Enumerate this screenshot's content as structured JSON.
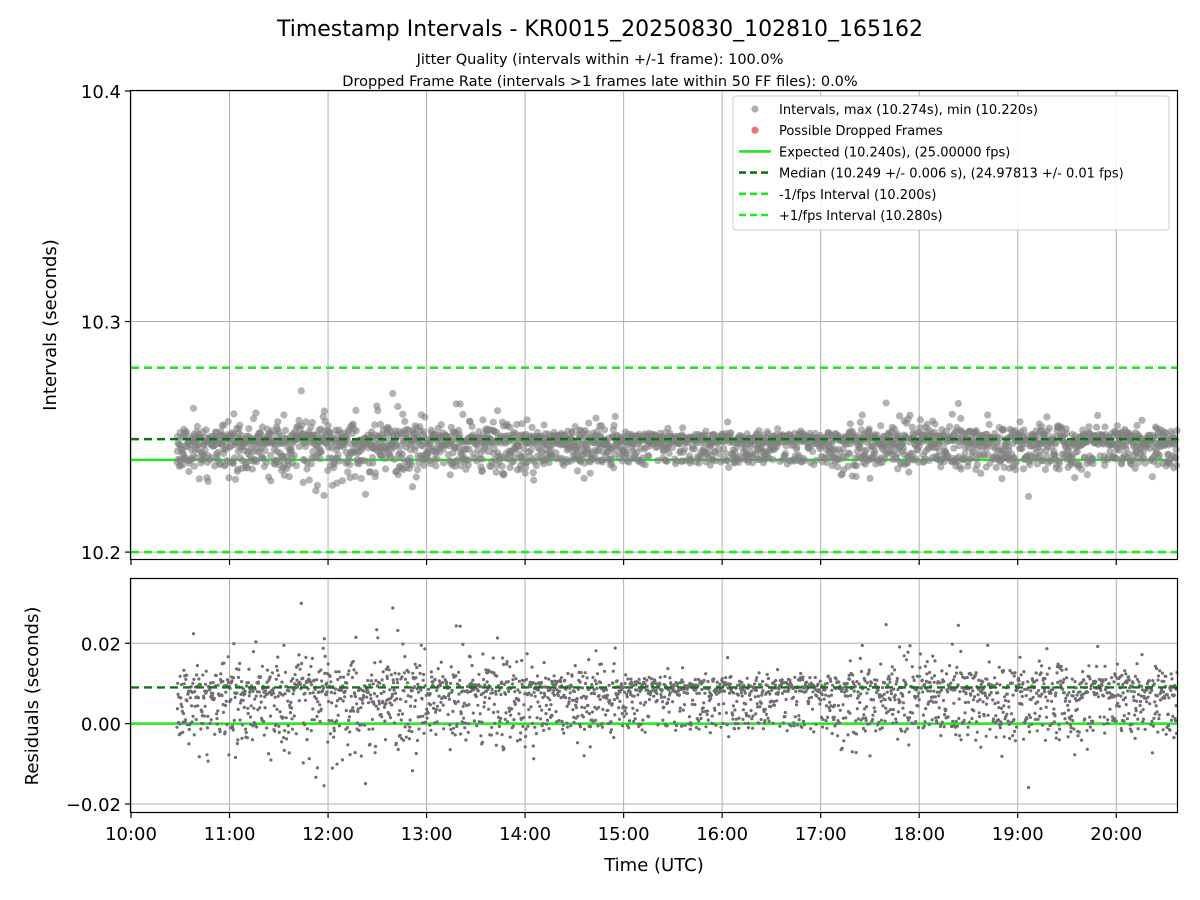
{
  "title": "Timestamp Intervals - KR0015_20250830_102810_165162",
  "subtitle_lines": [
    "Jitter Quality (intervals within +/-1 frame): 100.0%",
    "Dropped Frame Rate (intervals >1 frames late within 50 FF files): 0.0%"
  ],
  "colors": {
    "points": "#808080",
    "dropped": "#f05a5a",
    "expected": "#22e622",
    "median": "#0a7a0a",
    "interval_lines": "#22e622",
    "grid": "#b0b0b0"
  },
  "chart_data": [
    {
      "type": "scatter",
      "ylabel": "Intervals (seconds)",
      "xlim": [
        "10:00",
        "20:37"
      ],
      "ylim": [
        10.197,
        10.4
      ],
      "yticks": [
        "10.2",
        "10.3",
        "10.4"
      ],
      "grid": true,
      "legend_position": "upper right",
      "legend": [
        {
          "label": "Intervals, max (10.274s), min (10.220s)",
          "kind": "marker",
          "color": "#a0a0a0"
        },
        {
          "label": "Possible Dropped Frames",
          "kind": "marker",
          "color": "#f05a5a"
        },
        {
          "label": "Expected (10.240s), (25.00000 fps)",
          "kind": "solid",
          "color": "#22e622"
        },
        {
          "label": "Median (10.249 +/- 0.006 s), (24.97813 +/- 0.01 fps)",
          "kind": "dashed",
          "color": "#0a7a0a"
        },
        {
          "label": "-1/fps Interval (10.200s)",
          "kind": "dashed",
          "color": "#22e622"
        },
        {
          "label": "+1/fps Interval (10.280s)",
          "kind": "dashed",
          "color": "#22e622"
        }
      ],
      "reference_lines": {
        "expected": 10.24,
        "median": 10.249,
        "minus_1fps": 10.2,
        "plus_1fps": 10.28
      },
      "series_summary": {
        "x_start": "10:28",
        "x_end": "20:37",
        "max": 10.274,
        "min": 10.22,
        "median": 10.249,
        "std": 0.006
      },
      "dropped_frames": []
    },
    {
      "type": "scatter",
      "xlabel": "Time (UTC)",
      "ylabel": "Residuals (seconds)",
      "xlim": [
        "10:00",
        "20:37"
      ],
      "ylim": [
        -0.022,
        0.036
      ],
      "yticks": [
        "−0.02",
        "0.00",
        "0.02"
      ],
      "xticks": [
        "10:00",
        "11:00",
        "12:00",
        "13:00",
        "14:00",
        "15:00",
        "16:00",
        "17:00",
        "18:00",
        "19:00",
        "20:00"
      ],
      "grid": true,
      "reference_lines": {
        "zero": 0.0,
        "median": 0.009
      },
      "series_summary": {
        "x_start": "10:28",
        "x_end": "20:37",
        "max": 0.034,
        "min": -0.02
      }
    }
  ]
}
